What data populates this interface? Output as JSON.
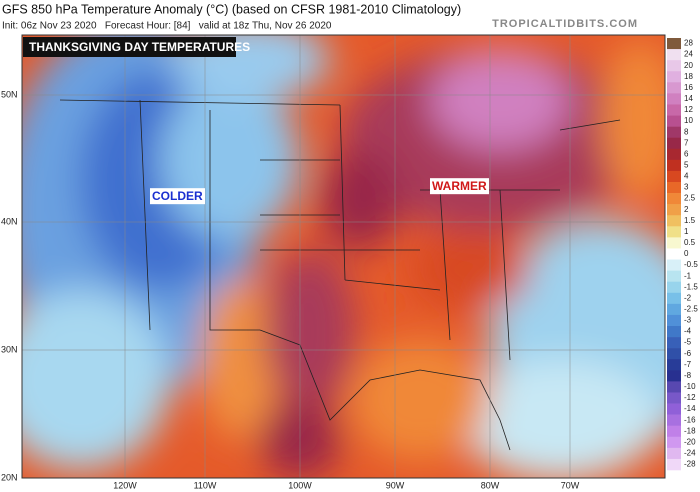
{
  "header": {
    "title": "GFS 850 hPa Temperature Anomaly (°C) (based on CFSR 1981-2010 Climatology)",
    "init": "Init: 06z Nov 23 2020   Forecast Hour: [84]   valid at 18z Thu, Nov 26 2020",
    "site": "TROPICALTIDBITS.COM"
  },
  "map": {
    "title_box": "THANKSGIVING DAY TEMPERATURES",
    "labels": [
      {
        "text": "COLDER",
        "color": "#1a2fd0"
      },
      {
        "text": "WARMER",
        "color": "#d01818"
      }
    ],
    "lat_labels": [
      "50N",
      "40N",
      "30N",
      "20N"
    ],
    "lon_labels": [
      "120W",
      "110W",
      "100W",
      "90W",
      "80W",
      "70W"
    ]
  },
  "colorbar": {
    "levels": [
      28,
      24,
      20,
      18,
      16,
      14,
      12,
      10,
      8,
      7,
      6,
      5,
      4,
      3,
      2.5,
      2,
      1.5,
      1,
      0.5,
      0,
      -0.5,
      -1,
      -1.5,
      -2,
      -2.5,
      -3,
      -4,
      -5,
      -6,
      -7,
      -8,
      -10,
      -12,
      -14,
      -16,
      -18,
      -20,
      -24,
      -28
    ],
    "colors": [
      "#7f5a3c",
      "#f0e0f0",
      "#e8c8e8",
      "#e0b0e0",
      "#d898d0",
      "#d080c0",
      "#c868a8",
      "#b85090",
      "#a03868",
      "#982848",
      "#a82830",
      "#c03020",
      "#d84820",
      "#e86828",
      "#f08838",
      "#f0a048",
      "#f0c060",
      "#f0e088",
      "#f8f8d0",
      "#ffffff",
      "#d8f0f8",
      "#b8e4f0",
      "#98d4ec",
      "#78c0e8",
      "#60a8e0",
      "#5090d8",
      "#4078c8",
      "#3860b8",
      "#3050a8",
      "#283c98",
      "#283090",
      "#5848b0",
      "#7858c8",
      "#9060d8",
      "#a870e0",
      "#c080e8",
      "#d098f0",
      "#e0b8f0",
      "#f0d8f8"
    ]
  }
}
